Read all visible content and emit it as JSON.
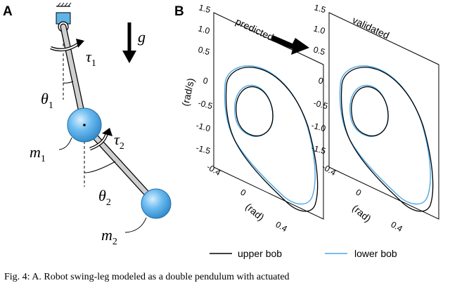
{
  "panel_a": {
    "label": "A",
    "gravity_symbol": "g",
    "tau1": {
      "symbol": "τ",
      "sub": "1"
    },
    "tau2": {
      "symbol": "τ",
      "sub": "2"
    },
    "theta1": {
      "symbol": "θ",
      "sub": "1"
    },
    "theta2": {
      "symbol": "θ",
      "sub": "2"
    },
    "m1": {
      "symbol": "m",
      "sub": "1"
    },
    "m2": {
      "symbol": "m",
      "sub": "2"
    },
    "colors": {
      "bob": "#4aa8e8",
      "bob_highlight": "#cfe9fb",
      "link": "#bbbbbb",
      "pivot": "#5fb3e6"
    }
  },
  "panel_b": {
    "label": "B",
    "plots": [
      {
        "title": "predicted",
        "y_ticks": [
          "1.5",
          "1.0",
          "0.5",
          "0",
          "-0.5",
          "-1.0",
          "-1.5"
        ],
        "y_axis_label": "(rad/s)",
        "x_ticks": [
          "-0.4",
          "0",
          "0.4"
        ],
        "x_axis_label": "(rad)"
      },
      {
        "title": "validated",
        "y_ticks": [
          "1.5",
          "1.0",
          "0.5",
          "0",
          "-0.5",
          "-1.0",
          "-1.5"
        ],
        "x_ticks": [
          "-0.4",
          "0",
          "0.4"
        ],
        "x_axis_label": "(rad)"
      }
    ],
    "legend": [
      {
        "label": "upper bob",
        "color": "#000000"
      },
      {
        "label": "lower bob",
        "color": "#4aa8e8"
      }
    ]
  },
  "caption": "Fig. 4: A. Robot swing-leg modeled as a double pendulum with actuated"
}
